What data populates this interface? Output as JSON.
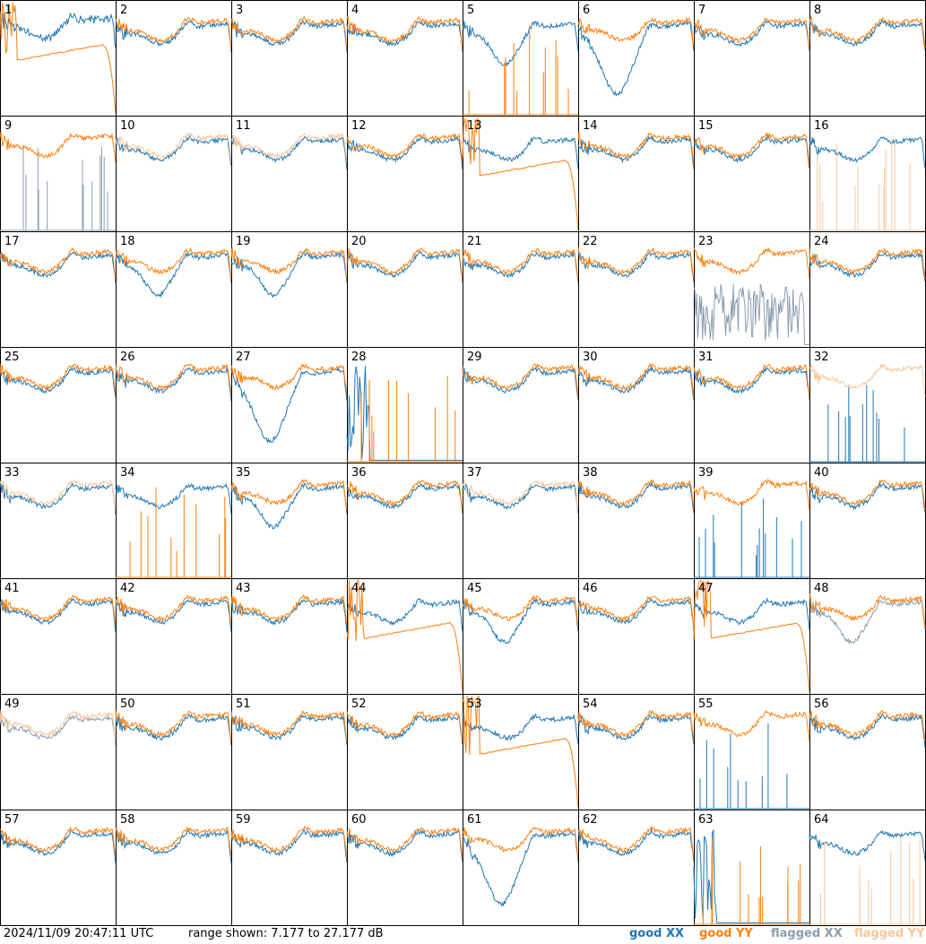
{
  "footer": {
    "timestamp": "2024/11/09 20:47:11 UTC",
    "range": "range shown: 7.177 to 27.177 dB"
  },
  "legend": {
    "good_xx": "good XX",
    "good_yy": "good YY",
    "flagged_xx": "flagged XX",
    "flagged_yy": "flagged YY"
  },
  "colors": {
    "good_xx": "#1f77b4",
    "good_yy": "#ff7f0e",
    "flagged_xx": "#8c9db0",
    "flagged_yy": "#f7c8a0",
    "grid": "#000000"
  },
  "chart_data": {
    "type": "line",
    "grid_rows": 8,
    "grid_cols": 8,
    "ylim": [
      7.177,
      27.177
    ],
    "y_unit": "dB",
    "panels": [
      {
        "id": "1",
        "xx": "good",
        "yy": "good",
        "shape": "high-noisy",
        "yyShape": "drop"
      },
      {
        "id": "2",
        "xx": "good",
        "yy": "good",
        "shape": "typical"
      },
      {
        "id": "3",
        "xx": "good",
        "yy": "good",
        "shape": "typical"
      },
      {
        "id": "4",
        "xx": "good",
        "yy": "good",
        "shape": "typical"
      },
      {
        "id": "5",
        "xx": "good",
        "yy": "good",
        "shape": "dip",
        "yyShape": "spikes"
      },
      {
        "id": "6",
        "xx": "good",
        "yy": "good",
        "shape": "deep-dip"
      },
      {
        "id": "7",
        "xx": "good",
        "yy": "good",
        "shape": "typical"
      },
      {
        "id": "8",
        "xx": "good",
        "yy": "good",
        "shape": "typical"
      },
      {
        "id": "9",
        "xx": "flagged",
        "yy": "good",
        "shape": "typical",
        "xxShape": "spikes"
      },
      {
        "id": "10",
        "xx": "good",
        "yy": "flagged",
        "shape": "typical"
      },
      {
        "id": "11",
        "xx": "good",
        "yy": "flagged",
        "shape": "typical"
      },
      {
        "id": "12",
        "xx": "good",
        "yy": "good",
        "shape": "typical"
      },
      {
        "id": "13",
        "xx": "good",
        "yy": "good",
        "shape": "typical",
        "yyShape": "drop"
      },
      {
        "id": "14",
        "xx": "good",
        "yy": "good",
        "shape": "typical"
      },
      {
        "id": "15",
        "xx": "good",
        "yy": "good",
        "shape": "typical"
      },
      {
        "id": "16",
        "xx": "good",
        "yy": "flagged",
        "shape": "typical",
        "yyShape": "spikes"
      },
      {
        "id": "17",
        "xx": "good",
        "yy": "good",
        "shape": "typical"
      },
      {
        "id": "18",
        "xx": "good",
        "yy": "good",
        "shape": "dip"
      },
      {
        "id": "19",
        "xx": "good",
        "yy": "good",
        "shape": "dip"
      },
      {
        "id": "20",
        "xx": "good",
        "yy": "good",
        "shape": "typical"
      },
      {
        "id": "21",
        "xx": "good",
        "yy": "good",
        "shape": "typical"
      },
      {
        "id": "22",
        "xx": "good",
        "yy": "good",
        "shape": "typical"
      },
      {
        "id": "23",
        "xx": "flagged",
        "yy": "good",
        "shape": "typical",
        "xxShape": "noisy-low"
      },
      {
        "id": "24",
        "xx": "good",
        "yy": "good",
        "shape": "typical"
      },
      {
        "id": "25",
        "xx": "good",
        "yy": "good",
        "shape": "typical"
      },
      {
        "id": "26",
        "xx": "good",
        "yy": "good",
        "shape": "typical"
      },
      {
        "id": "27",
        "xx": "good",
        "yy": "good",
        "shape": "deep-dip"
      },
      {
        "id": "28",
        "xx": "good",
        "yy": "good",
        "shape": "flat-low",
        "yyShape": "spikes"
      },
      {
        "id": "29",
        "xx": "good",
        "yy": "good",
        "shape": "typical"
      },
      {
        "id": "30",
        "xx": "good",
        "yy": "good",
        "shape": "typical"
      },
      {
        "id": "31",
        "xx": "good",
        "yy": "good",
        "shape": "typical"
      },
      {
        "id": "32",
        "xx": "good",
        "yy": "flagged",
        "shape": "typical",
        "xxShape": "spikes"
      },
      {
        "id": "33",
        "xx": "good",
        "yy": "flagged",
        "shape": "typical"
      },
      {
        "id": "34",
        "xx": "good",
        "yy": "good",
        "shape": "typical",
        "yyShape": "spikes"
      },
      {
        "id": "35",
        "xx": "good",
        "yy": "good",
        "shape": "dip"
      },
      {
        "id": "36",
        "xx": "good",
        "yy": "good",
        "shape": "typical"
      },
      {
        "id": "37",
        "xx": "good",
        "yy": "flagged",
        "shape": "typical"
      },
      {
        "id": "38",
        "xx": "good",
        "yy": "good",
        "shape": "typical"
      },
      {
        "id": "39",
        "xx": "good",
        "yy": "good",
        "shape": "typical",
        "xxShape": "spikes"
      },
      {
        "id": "40",
        "xx": "good",
        "yy": "good",
        "shape": "typical"
      },
      {
        "id": "41",
        "xx": "good",
        "yy": "good",
        "shape": "typical"
      },
      {
        "id": "42",
        "xx": "good",
        "yy": "good",
        "shape": "typical"
      },
      {
        "id": "43",
        "xx": "good",
        "yy": "good",
        "shape": "typical"
      },
      {
        "id": "44",
        "xx": "good",
        "yy": "good",
        "shape": "typical",
        "yyShape": "drop"
      },
      {
        "id": "45",
        "xx": "good",
        "yy": "good",
        "shape": "dip"
      },
      {
        "id": "46",
        "xx": "good",
        "yy": "good",
        "shape": "typical"
      },
      {
        "id": "47",
        "xx": "good",
        "yy": "good",
        "shape": "typical",
        "yyShape": "drop"
      },
      {
        "id": "48",
        "xx": "flagged",
        "yy": "good",
        "shape": "dip"
      },
      {
        "id": "49",
        "xx": "flagged",
        "yy": "flagged",
        "shape": "typical"
      },
      {
        "id": "50",
        "xx": "good",
        "yy": "good",
        "shape": "typical"
      },
      {
        "id": "51",
        "xx": "good",
        "yy": "good",
        "shape": "typical"
      },
      {
        "id": "52",
        "xx": "good",
        "yy": "good",
        "shape": "typical"
      },
      {
        "id": "53",
        "xx": "good",
        "yy": "good",
        "shape": "typical",
        "yyShape": "drop"
      },
      {
        "id": "54",
        "xx": "good",
        "yy": "good",
        "shape": "typical"
      },
      {
        "id": "55",
        "xx": "good",
        "yy": "good",
        "shape": "typical",
        "xxShape": "spikes"
      },
      {
        "id": "56",
        "xx": "good",
        "yy": "good",
        "shape": "typical"
      },
      {
        "id": "57",
        "xx": "good",
        "yy": "good",
        "shape": "typical"
      },
      {
        "id": "58",
        "xx": "good",
        "yy": "good",
        "shape": "typical"
      },
      {
        "id": "59",
        "xx": "good",
        "yy": "good",
        "shape": "typical"
      },
      {
        "id": "60",
        "xx": "good",
        "yy": "good",
        "shape": "typical"
      },
      {
        "id": "61",
        "xx": "good",
        "yy": "good",
        "shape": "deep-dip"
      },
      {
        "id": "62",
        "xx": "good",
        "yy": "good",
        "shape": "typical"
      },
      {
        "id": "63",
        "xx": "good",
        "yy": "good",
        "shape": "flat-low",
        "yyShape": "spikes"
      },
      {
        "id": "64",
        "xx": "good",
        "yy": "flagged",
        "shape": "typical",
        "yyShape": "spikes"
      }
    ]
  }
}
